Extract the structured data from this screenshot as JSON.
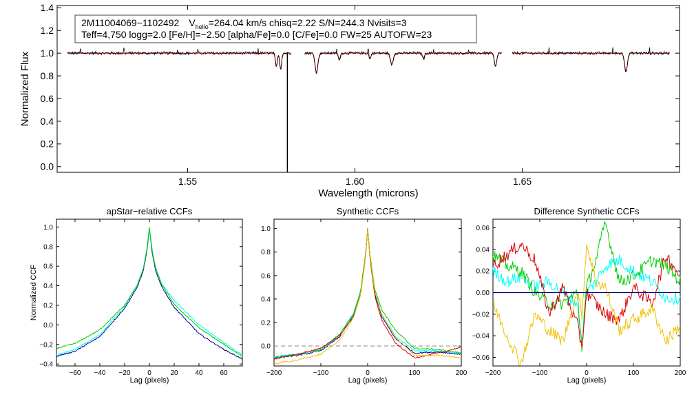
{
  "header": {
    "line1_star": "2M11004069−1102492",
    "line1_vhelio_prefix": "V",
    "line1_vhelio_sub": "helio",
    "line1_rest": "=264.04 km/s  chisq=2.22  S/N=244.3  Nvisits=3",
    "line2": "Teff=4,750 logg=2.0 [Fe/H]=−2.50 [alpha/Fe]=0.0 [C/Fe]=0.0 FW=25 AUTOFW=23"
  },
  "colors": {
    "observed": "#000000",
    "model": "#cc0000",
    "blue": "#00008b",
    "cyan": "#00ffff",
    "green": "#00cc00",
    "red": "#dd0000",
    "yellow": "#f0c000",
    "zero_line_dashed": "#888888",
    "zero_line_solid": "#000080"
  },
  "chart_data": [
    {
      "id": "spectrum",
      "type": "line",
      "title": "",
      "xlabel": "Wavelength (microns)",
      "ylabel": "Normalized Flux",
      "xlim": [
        1.511,
        1.697
      ],
      "ylim": [
        -0.05,
        1.42
      ],
      "xticks": [
        1.55,
        1.6,
        1.65
      ],
      "xtick_labels": [
        "1.55",
        "1.60",
        "1.65"
      ],
      "yticks": [
        0.0,
        0.2,
        0.4,
        0.6,
        0.8,
        1.0,
        1.2,
        1.4
      ],
      "ytick_labels": [
        "0.0",
        "0.2",
        "0.4",
        "0.6",
        "0.8",
        "1.0",
        "1.2",
        "1.4"
      ],
      "chip_ranges": [
        [
          1.514,
          1.581
        ],
        [
          1.585,
          1.644
        ],
        [
          1.647,
          1.694
        ]
      ],
      "continuum": 1.0,
      "absorption_lines": [
        {
          "x": 1.5765,
          "depth": 0.12,
          "width": 0.0004
        },
        {
          "x": 1.5778,
          "depth": 0.14,
          "width": 0.0004
        },
        {
          "x": 1.5885,
          "depth": 0.17,
          "width": 0.0006
        },
        {
          "x": 1.5953,
          "depth": 0.06,
          "width": 0.0004
        },
        {
          "x": 1.6045,
          "depth": 0.05,
          "width": 0.0004
        },
        {
          "x": 1.611,
          "depth": 0.1,
          "width": 0.0006
        },
        {
          "x": 1.6205,
          "depth": 0.05,
          "width": 0.0004
        },
        {
          "x": 1.642,
          "depth": 0.12,
          "width": 0.0005
        },
        {
          "x": 1.681,
          "depth": 0.16,
          "width": 0.0006
        }
      ],
      "glitch": {
        "x": 1.5798,
        "min": -0.05
      },
      "emission_spikes": [
        1.518,
        1.531,
        1.547,
        1.553,
        1.571,
        1.5945,
        1.604,
        1.6235,
        1.634,
        1.658,
        1.677,
        1.688
      ]
    },
    {
      "id": "apstar_ccf",
      "type": "line",
      "title": "apStar−relative CCFs",
      "xlabel": "Lag (pixels)",
      "ylabel": "Normalized CCF",
      "xlim": [
        -75,
        75
      ],
      "ylim": [
        -0.42,
        1.08
      ],
      "xticks": [
        -60,
        -40,
        -20,
        0,
        20,
        40,
        60
      ],
      "xtick_labels": [
        "−60",
        "−40",
        "−20",
        "0",
        "20",
        "40",
        "60"
      ],
      "yticks": [
        -0.4,
        -0.2,
        0.0,
        0.2,
        0.4,
        0.6,
        0.8,
        1.0
      ],
      "ytick_labels": [
        "−0.4",
        "−0.2",
        "0.0",
        "0.2",
        "0.4",
        "0.6",
        "0.8",
        "1.0"
      ],
      "series": [
        {
          "name": "blue",
          "color": "#00008b",
          "x": [
            -75,
            -60,
            -40,
            -20,
            -10,
            -5,
            -2,
            0,
            2,
            5,
            10,
            20,
            40,
            60,
            75
          ],
          "y": [
            -0.32,
            -0.27,
            -0.12,
            0.17,
            0.38,
            0.55,
            0.75,
            0.98,
            0.75,
            0.55,
            0.39,
            0.18,
            -0.09,
            -0.25,
            -0.35
          ]
        },
        {
          "name": "cyan",
          "color": "#00ffff",
          "x": [
            -75,
            -60,
            -40,
            -20,
            -10,
            -5,
            -2,
            0,
            2,
            5,
            10,
            20,
            40,
            60,
            75
          ],
          "y": [
            -0.31,
            -0.25,
            -0.1,
            0.19,
            0.4,
            0.57,
            0.77,
            0.97,
            0.77,
            0.58,
            0.42,
            0.25,
            0.0,
            -0.18,
            -0.31
          ]
        },
        {
          "name": "green",
          "color": "#00cc00",
          "x": [
            -75,
            -60,
            -40,
            -20,
            -10,
            -5,
            -2,
            0,
            2,
            5,
            10,
            20,
            40,
            60,
            75
          ],
          "y": [
            -0.24,
            -0.19,
            -0.05,
            0.2,
            0.4,
            0.57,
            0.77,
            1.0,
            0.78,
            0.58,
            0.41,
            0.21,
            -0.03,
            -0.2,
            -0.32
          ]
        }
      ]
    },
    {
      "id": "synthetic_ccf",
      "type": "line",
      "title": "Synthetic CCFs",
      "xlabel": "Lag (pixels)",
      "ylabel": "",
      "xlim": [
        -200,
        200
      ],
      "ylim": [
        -0.17,
        1.08
      ],
      "xticks": [
        -200,
        -100,
        0,
        100,
        200
      ],
      "xtick_labels": [
        "−200",
        "−100",
        "0",
        "100",
        "200"
      ],
      "yticks": [
        0.0,
        0.2,
        0.4,
        0.6,
        0.8,
        1.0
      ],
      "ytick_labels": [
        "0.0",
        "0.2",
        "0.4",
        "0.6",
        "0.8",
        "1.0"
      ],
      "zero_line": 0.0,
      "series": [
        {
          "name": "blue",
          "color": "#00008b",
          "x": [
            -200,
            -150,
            -100,
            -60,
            -30,
            -15,
            -5,
            0,
            5,
            15,
            30,
            60,
            100,
            150,
            200
          ],
          "y": [
            -0.1,
            -0.08,
            -0.04,
            0.08,
            0.26,
            0.45,
            0.75,
            1.0,
            0.75,
            0.45,
            0.25,
            0.06,
            -0.06,
            -0.05,
            -0.07
          ]
        },
        {
          "name": "cyan",
          "color": "#00ffff",
          "x": [
            -200,
            -150,
            -100,
            -60,
            -30,
            -15,
            -5,
            0,
            5,
            15,
            30,
            60,
            100,
            150,
            200
          ],
          "y": [
            -0.09,
            -0.07,
            -0.03,
            0.09,
            0.27,
            0.46,
            0.76,
            1.0,
            0.76,
            0.47,
            0.27,
            0.08,
            -0.04,
            -0.04,
            -0.06
          ]
        },
        {
          "name": "green",
          "color": "#00cc00",
          "x": [
            -200,
            -150,
            -100,
            -60,
            -30,
            -15,
            -5,
            0,
            5,
            15,
            30,
            60,
            100,
            150,
            200
          ],
          "y": [
            -0.1,
            -0.07,
            -0.03,
            0.1,
            0.28,
            0.47,
            0.77,
            1.0,
            0.78,
            0.49,
            0.31,
            0.13,
            -0.02,
            -0.03,
            -0.06
          ]
        },
        {
          "name": "red",
          "color": "#dd0000",
          "x": [
            -200,
            -150,
            -100,
            -60,
            -30,
            -15,
            -5,
            0,
            5,
            15,
            30,
            60,
            100,
            150,
            200
          ],
          "y": [
            -0.11,
            -0.07,
            -0.02,
            0.09,
            0.25,
            0.44,
            0.74,
            1.0,
            0.74,
            0.43,
            0.22,
            0.02,
            -0.1,
            -0.06,
            -0.01
          ]
        },
        {
          "name": "yellow",
          "color": "#f0c000",
          "x": [
            -200,
            -150,
            -100,
            -60,
            -30,
            -15,
            -5,
            0,
            5,
            15,
            30,
            60,
            100,
            150,
            200
          ],
          "y": [
            -0.15,
            -0.12,
            -0.07,
            0.05,
            0.24,
            0.44,
            0.74,
            1.0,
            0.76,
            0.46,
            0.27,
            0.07,
            -0.08,
            -0.08,
            -0.1
          ]
        }
      ]
    },
    {
      "id": "difference_ccf",
      "type": "line",
      "title": "Difference Synthetic CCFs",
      "xlabel": "Lag (pixels)",
      "ylabel": "",
      "xlim": [
        -200,
        200
      ],
      "ylim": [
        -0.068,
        0.068
      ],
      "xticks": [
        -200,
        -100,
        0,
        100,
        200
      ],
      "xtick_labels": [
        "−200",
        "−100",
        "0",
        "100",
        "200"
      ],
      "yticks": [
        -0.06,
        -0.04,
        -0.02,
        0.0,
        0.02,
        0.04,
        0.06
      ],
      "ytick_labels": [
        "−0.06",
        "−0.04",
        "−0.02",
        "0.00",
        "0.02",
        "0.04",
        "0.06"
      ],
      "zero_line": 0.0,
      "series": [
        {
          "name": "cyan",
          "color": "#00ffff",
          "x": [
            -200,
            -170,
            -140,
            -110,
            -80,
            -50,
            -20,
            -10,
            0,
            20,
            40,
            70,
            100,
            140,
            170,
            200
          ],
          "y": [
            0.02,
            0.01,
            0.015,
            0.005,
            0.01,
            0.0,
            -0.01,
            -0.045,
            0.0,
            0.01,
            0.025,
            0.03,
            0.02,
            0.01,
            -0.005,
            -0.005
          ]
        },
        {
          "name": "green",
          "color": "#00cc00",
          "x": [
            -200,
            -170,
            -140,
            -110,
            -80,
            -50,
            -20,
            -10,
            0,
            20,
            40,
            70,
            100,
            140,
            170,
            200
          ],
          "y": [
            0.035,
            0.025,
            0.02,
            0.0,
            -0.01,
            -0.01,
            0.0,
            -0.05,
            0.005,
            0.03,
            0.065,
            0.01,
            0.015,
            0.03,
            0.025,
            0.01
          ]
        },
        {
          "name": "red",
          "color": "#dd0000",
          "x": [
            -200,
            -170,
            -140,
            -110,
            -80,
            -50,
            -20,
            -10,
            0,
            20,
            40,
            70,
            100,
            140,
            170,
            200
          ],
          "y": [
            0.025,
            0.035,
            0.045,
            0.03,
            -0.02,
            0.005,
            -0.03,
            -0.05,
            0.0,
            -0.01,
            -0.02,
            -0.025,
            0.005,
            -0.01,
            0.035,
            0.015
          ]
        },
        {
          "name": "yellow",
          "color": "#f0c000",
          "x": [
            -200,
            -170,
            -140,
            -110,
            -80,
            -50,
            -20,
            -10,
            0,
            20,
            40,
            70,
            100,
            140,
            170,
            200
          ],
          "y": [
            -0.01,
            -0.04,
            -0.065,
            -0.02,
            -0.035,
            -0.045,
            0.0,
            -0.02,
            0.045,
            0.01,
            0.005,
            -0.035,
            -0.025,
            -0.015,
            -0.045,
            -0.03
          ]
        }
      ]
    }
  ]
}
